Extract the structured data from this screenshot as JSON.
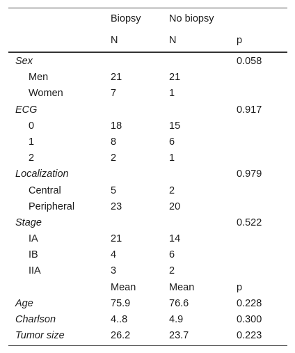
{
  "header": {
    "row1": [
      "",
      "Biopsy",
      "No biopsy",
      ""
    ],
    "row2": [
      "",
      "N",
      "N",
      "p"
    ]
  },
  "rows": [
    {
      "label": "Sex",
      "type": "cat",
      "c1": "",
      "c2": "",
      "c3": "0.058"
    },
    {
      "label": "Men",
      "type": "sub",
      "c1": "21",
      "c2": "21",
      "c3": ""
    },
    {
      "label": "Women",
      "type": "sub",
      "c1": "7",
      "c2": "1",
      "c3": ""
    },
    {
      "label": "ECG",
      "type": "cat",
      "c1": "",
      "c2": "",
      "c3": "0.917"
    },
    {
      "label": "0",
      "type": "sub",
      "c1": "18",
      "c2": "15",
      "c3": ""
    },
    {
      "label": "1",
      "type": "sub",
      "c1": "8",
      "c2": "6",
      "c3": ""
    },
    {
      "label": "2",
      "type": "sub",
      "c1": "2",
      "c2": "1",
      "c3": ""
    },
    {
      "label": "Localization",
      "type": "cat",
      "c1": "",
      "c2": "",
      "c3": "0.979"
    },
    {
      "label": "Central",
      "type": "sub",
      "c1": "5",
      "c2": "2",
      "c3": ""
    },
    {
      "label": "Peripheral",
      "type": "sub",
      "c1": "23",
      "c2": "20",
      "c3": ""
    },
    {
      "label": "Stage",
      "type": "cat",
      "c1": "",
      "c2": "",
      "c3": "0.522"
    },
    {
      "label": "IA",
      "type": "sub",
      "c1": "21",
      "c2": "14",
      "c3": ""
    },
    {
      "label": "IB",
      "type": "sub",
      "c1": "4",
      "c2": "6",
      "c3": ""
    },
    {
      "label": "IIA",
      "type": "sub",
      "c1": "3",
      "c2": "2",
      "c3": ""
    },
    {
      "label": "",
      "type": "plain",
      "c1": "Mean",
      "c2": "Mean",
      "c3": "p"
    },
    {
      "label": "Age",
      "type": "cat",
      "c1": "75.9",
      "c2": "76.6",
      "c3": "0.228"
    },
    {
      "label": "Charlson",
      "type": "cat",
      "c1": "4..8",
      "c2": "4.9",
      "c3": "0.300"
    },
    {
      "label": "Tumor size",
      "type": "cat",
      "c1": "26.2",
      "c2": "23.7",
      "c3": "0.223"
    }
  ]
}
